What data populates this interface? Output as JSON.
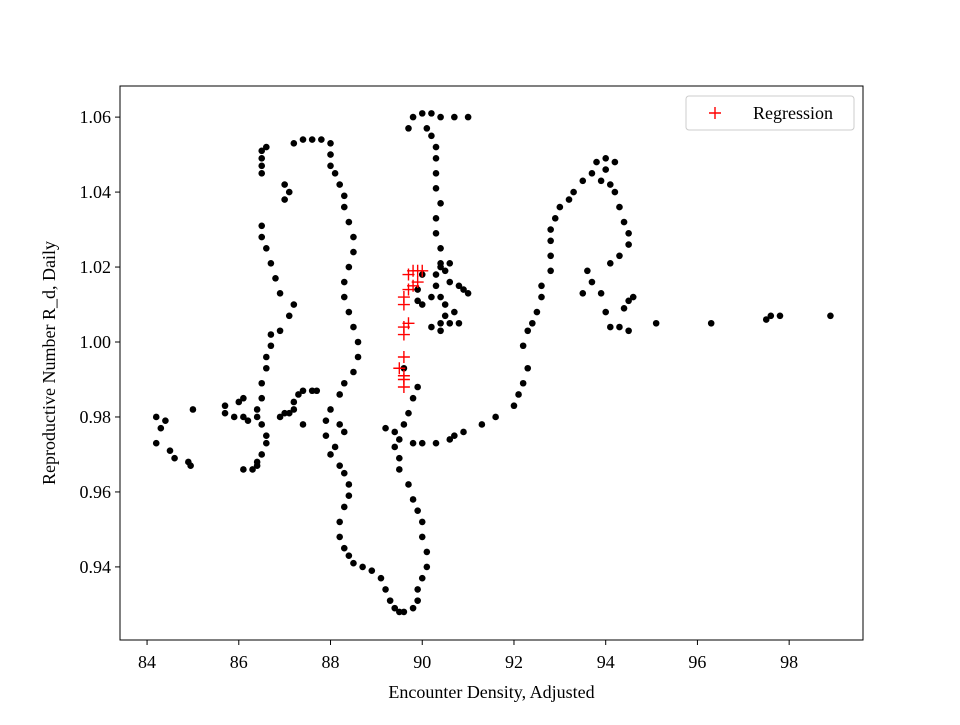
{
  "chart_data": {
    "type": "scatter",
    "xlabel": "Encounter Density, Adjusted",
    "ylabel": "Reproductive Number R_d, Daily",
    "xlim": [
      83.41,
      99.61
    ],
    "ylim": [
      0.9205,
      1.0683
    ],
    "xticks": [
      84,
      86,
      88,
      90,
      92,
      94,
      96,
      98
    ],
    "yticks": [
      0.94,
      0.96,
      0.98,
      {
        "value": 1.0,
        "label": "1.00"
      },
      1.02,
      1.04,
      1.06
    ],
    "legend": "upper right",
    "series": [
      {
        "color": "#000000",
        "marker": "dot",
        "x": [
          84.2,
          84.2,
          84.3,
          84.4,
          84.5,
          84.6,
          84.9,
          84.95,
          85.0,
          85.7,
          85.7,
          85.9,
          86.1,
          86.2,
          86.1,
          86.3,
          86.4,
          86.4,
          86.5,
          86.6,
          86.6,
          86.5,
          86.4,
          86.4,
          86.5,
          86.5,
          86.6,
          86.6,
          86.7,
          86.7,
          86.0,
          86.1,
          86.9,
          87.0,
          87.1,
          87.2,
          87.2,
          87.3,
          87.4,
          87.6,
          87.7,
          87.4,
          86.9,
          87.1,
          87.2,
          86.9,
          86.8,
          86.7,
          86.6,
          86.5,
          86.5,
          87.0,
          87.1,
          87.0,
          86.5,
          86.5,
          86.5,
          86.5,
          86.6,
          87.2,
          87.4,
          87.6,
          87.8,
          88.0,
          88.0,
          88.0,
          88.1,
          88.2,
          88.3,
          88.3,
          88.4,
          88.5,
          88.5,
          88.4,
          88.3,
          88.3,
          88.4,
          88.5,
          88.6,
          88.6,
          88.5,
          88.3,
          88.2,
          88.0,
          87.9,
          87.9,
          88.2,
          88.3,
          88.1,
          88.0,
          88.2,
          88.3,
          88.4,
          88.4,
          88.3,
          88.2,
          88.2,
          88.3,
          88.4,
          88.5,
          88.7,
          88.9,
          89.1,
          89.2,
          89.3,
          89.4,
          89.5,
          89.6,
          89.8,
          89.9,
          89.9,
          90.0,
          90.1,
          90.1,
          90.0,
          90.0,
          89.9,
          89.8,
          89.7,
          89.5,
          89.5,
          89.4,
          89.5,
          89.6,
          89.7,
          89.8,
          89.9,
          89.6,
          89.4,
          89.2,
          89.8,
          90.0,
          90.3,
          90.6,
          90.7,
          90.9,
          91.3,
          91.6,
          92.0,
          92.1,
          92.2,
          92.3,
          92.2,
          92.3,
          92.4,
          92.5,
          92.6,
          92.6,
          92.8,
          92.8,
          92.8,
          92.8,
          92.9,
          93.0,
          93.2,
          93.3,
          93.5,
          93.7,
          93.8,
          94.0,
          94.2,
          94.0,
          93.9,
          94.1,
          94.2,
          94.3,
          94.4,
          94.5,
          94.5,
          94.3,
          94.1,
          93.7,
          93.6,
          93.5,
          93.9,
          94.0,
          94.1,
          94.3,
          94.5,
          94.5,
          94.6,
          94.4,
          95.1,
          96.3,
          97.5,
          97.6,
          97.8,
          98.9,
          89.7,
          89.8,
          90.0,
          90.2,
          90.4,
          90.7,
          91.0,
          90.1,
          90.2,
          90.3,
          90.3,
          90.3,
          90.3,
          90.4,
          90.3,
          90.3,
          90.4,
          90.4,
          90.3,
          90.3,
          90.4,
          90.5,
          90.5,
          90.4,
          90.2,
          90.4,
          90.6,
          90.7,
          90.8,
          90.9,
          91.0,
          90.8,
          90.6,
          90.5,
          90.6,
          90.2,
          90.0,
          89.9,
          89.9,
          90.4,
          90.0
        ],
        "values": [
          0.98,
          0.973,
          0.977,
          0.979,
          0.971,
          0.969,
          0.968,
          0.967,
          0.982,
          0.983,
          0.981,
          0.98,
          0.98,
          0.979,
          0.966,
          0.966,
          0.967,
          0.968,
          0.97,
          0.973,
          0.975,
          0.978,
          0.98,
          0.982,
          0.985,
          0.989,
          0.993,
          0.996,
          0.999,
          1.002,
          0.984,
          0.985,
          0.98,
          0.981,
          0.981,
          0.982,
          0.984,
          0.986,
          0.987,
          0.987,
          0.987,
          0.978,
          1.003,
          1.007,
          1.01,
          1.013,
          1.017,
          1.021,
          1.025,
          1.028,
          1.031,
          1.038,
          1.04,
          1.042,
          1.045,
          1.047,
          1.049,
          1.051,
          1.052,
          1.053,
          1.054,
          1.054,
          1.054,
          1.053,
          1.05,
          1.047,
          1.045,
          1.042,
          1.039,
          1.036,
          1.032,
          1.028,
          1.024,
          1.02,
          1.016,
          1.012,
          1.008,
          1.004,
          1.0,
          0.996,
          0.992,
          0.989,
          0.986,
          0.982,
          0.979,
          0.975,
          0.978,
          0.976,
          0.972,
          0.97,
          0.967,
          0.965,
          0.962,
          0.959,
          0.956,
          0.952,
          0.948,
          0.945,
          0.943,
          0.941,
          0.94,
          0.939,
          0.937,
          0.934,
          0.931,
          0.929,
          0.928,
          0.928,
          0.929,
          0.931,
          0.934,
          0.937,
          0.94,
          0.944,
          0.948,
          0.952,
          0.955,
          0.958,
          0.962,
          0.966,
          0.969,
          0.972,
          0.974,
          0.978,
          0.981,
          0.985,
          0.988,
          0.993,
          0.976,
          0.977,
          0.973,
          0.973,
          0.973,
          0.974,
          0.975,
          0.976,
          0.978,
          0.98,
          0.983,
          0.986,
          0.989,
          0.993,
          0.999,
          1.003,
          1.005,
          1.008,
          1.012,
          1.015,
          1.019,
          1.023,
          1.027,
          1.03,
          1.033,
          1.036,
          1.038,
          1.04,
          1.043,
          1.045,
          1.048,
          1.049,
          1.048,
          1.046,
          1.043,
          1.042,
          1.04,
          1.036,
          1.032,
          1.029,
          1.026,
          1.023,
          1.021,
          1.016,
          1.019,
          1.013,
          1.013,
          1.008,
          1.004,
          1.004,
          1.003,
          1.011,
          1.012,
          1.009,
          1.005,
          1.005,
          1.006,
          1.007,
          1.007,
          1.007,
          1.057,
          1.06,
          1.061,
          1.061,
          1.06,
          1.06,
          1.06,
          1.057,
          1.055,
          1.052,
          1.049,
          1.045,
          1.041,
          1.037,
          1.033,
          1.029,
          1.025,
          1.021,
          1.018,
          1.015,
          1.012,
          1.01,
          1.007,
          1.005,
          1.004,
          1.003,
          1.005,
          1.008,
          1.005,
          1.014,
          1.013,
          1.015,
          1.016,
          1.019,
          1.021,
          1.012,
          1.01,
          1.011,
          1.014,
          1.02,
          1.018
        ]
      },
      {
        "name": "Regression",
        "color": "#ff0000",
        "marker": "plus",
        "x": [
          89.6,
          89.6,
          89.6,
          89.5,
          89.6,
          89.6,
          89.6,
          89.7,
          89.6,
          89.6,
          89.7,
          89.8,
          89.9,
          89.7,
          89.8,
          89.9,
          90.0
        ],
        "values": [
          0.988,
          0.99,
          0.991,
          0.993,
          0.996,
          1.002,
          1.004,
          1.005,
          1.01,
          1.012,
          1.014,
          1.015,
          1.016,
          1.018,
          1.019,
          1.019,
          1.019
        ]
      }
    ]
  }
}
